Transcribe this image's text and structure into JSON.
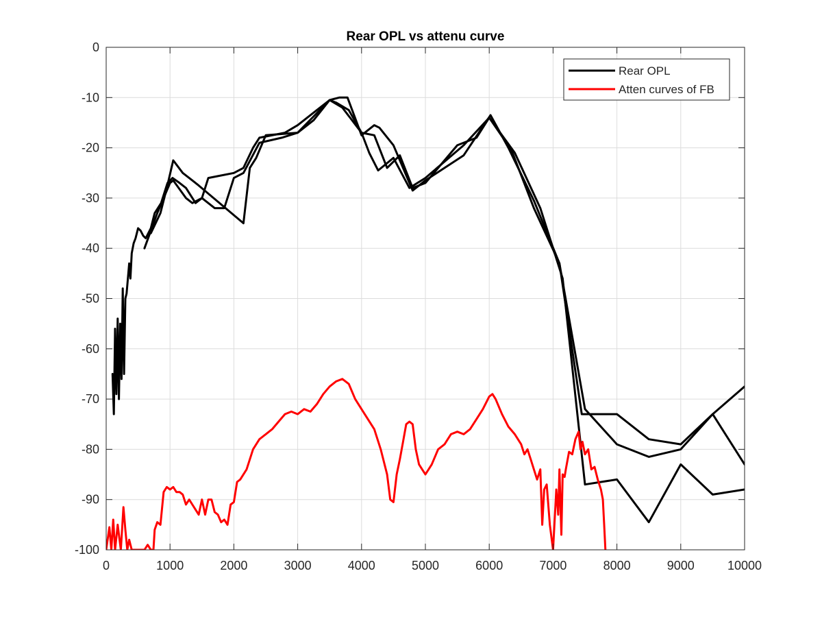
{
  "chart_data": {
    "type": "line",
    "title": "Rear OPL vs attenu curve",
    "xlabel": "",
    "ylabel": "",
    "xlim": [
      0,
      10000
    ],
    "ylim": [
      -100,
      0
    ],
    "x_ticks": [
      0,
      1000,
      2000,
      3000,
      4000,
      5000,
      6000,
      7000,
      8000,
      9000,
      10000
    ],
    "y_ticks": [
      0,
      -10,
      -20,
      -30,
      -40,
      -50,
      -60,
      -70,
      -80,
      -90,
      -100
    ],
    "grid": true,
    "legend_position": "top-right",
    "legend": [
      {
        "label": "Rear OPL",
        "color": "#000000"
      },
      {
        "label": "Atten curves of FB",
        "color": "#ff0000"
      }
    ],
    "series": [
      {
        "name": "Rear OPL",
        "color": "#000000",
        "x": [
          100,
          120,
          140,
          160,
          180,
          200,
          220,
          240,
          260,
          280,
          300,
          320,
          340,
          360,
          380,
          400,
          430,
          460,
          500,
          540,
          580,
          620,
          700,
          760,
          860,
          960,
          1040,
          1150,
          1250,
          1400,
          1500,
          1600,
          2000,
          2150,
          2300,
          2400,
          2800,
          3000,
          3150,
          3300,
          3500,
          3600,
          3800,
          4000,
          4120,
          4260,
          4500,
          4750,
          5000,
          5600,
          6000,
          6350,
          6700,
          7100,
          7450,
          8000,
          8500,
          9000,
          9500,
          10000
        ],
        "y": [
          -65,
          -73,
          -56,
          -69,
          -54,
          -70,
          -55,
          -66,
          -48,
          -65,
          -50,
          -49,
          -46,
          -43,
          -46,
          -41,
          -39,
          -38,
          -36,
          -36.5,
          -37.5,
          -38,
          -36,
          -33,
          -31,
          -27,
          -26,
          -27,
          -28,
          -31,
          -30,
          -26,
          -25,
          -24,
          -20,
          -18,
          -17,
          -15.5,
          -14,
          -12.5,
          -10.5,
          -11,
          -12.5,
          -17,
          -21,
          -24.5,
          -22,
          -28,
          -26,
          -19.5,
          -14,
          -20.5,
          -32,
          -43,
          -73,
          -73,
          -78,
          -79,
          -73,
          -67.5
        ]
      },
      {
        "name": "",
        "color": "#000000",
        "x": [
          600,
          800,
          900,
          1000,
          1050,
          1250,
          1350,
          1500,
          1700,
          1850,
          2000,
          2150,
          2400,
          2750,
          3000,
          3250,
          3500,
          3650,
          3780,
          4000,
          4200,
          4280,
          4500,
          4800,
          5000,
          5600,
          6020,
          6300,
          6700,
          7100,
          7500,
          8000,
          8500,
          9000,
          9500,
          10000
        ],
        "y": [
          -40,
          -33,
          -30,
          -27,
          -26.5,
          -30,
          -31,
          -30,
          -32,
          -32,
          -26,
          -25,
          -19,
          -18,
          -17,
          -14.5,
          -10.5,
          -10,
          -10,
          -17.5,
          -15.5,
          -16,
          -19.5,
          -28.5,
          -26.5,
          -21.5,
          -13.5,
          -20,
          -30.5,
          -43,
          -72,
          -79,
          -81.5,
          -80,
          -73,
          -83
        ]
      },
      {
        "name": "",
        "color": "#000000",
        "x": [
          700,
          850,
          950,
          1050,
          1200,
          1350,
          1450,
          2150,
          2250,
          2350,
          2500,
          3000,
          3500,
          3700,
          4000,
          4200,
          4400,
          4600,
          4800,
          5000,
          5500,
          5800,
          6000,
          6400,
          6800,
          7150,
          7500,
          8000,
          8500,
          9000,
          9500,
          10000
        ],
        "y": [
          -37,
          -33,
          -28,
          -22.5,
          -25,
          -26.5,
          -27.5,
          -35,
          -24,
          -22,
          -17.5,
          -17,
          -10.5,
          -12,
          -17,
          -17.5,
          -24,
          -21.5,
          -28,
          -27,
          -19.5,
          -18,
          -14,
          -21,
          -32,
          -46,
          -87,
          -86,
          -94.5,
          -83,
          -89,
          -88
        ]
      },
      {
        "name": "Atten curves of FB",
        "color": "#ff0000",
        "x": [
          0,
          50,
          80,
          110,
          140,
          180,
          230,
          270,
          300,
          330,
          360,
          400,
          600,
          650,
          700,
          740,
          760,
          800,
          850,
          900,
          950,
          1000,
          1050,
          1100,
          1150,
          1200,
          1250,
          1300,
          1350,
          1400,
          1450,
          1500,
          1550,
          1600,
          1650,
          1700,
          1750,
          1800,
          1850,
          1900,
          1950,
          2000,
          2050,
          2100,
          2200,
          2300,
          2400,
          2500,
          2600,
          2700,
          2800,
          2900,
          3000,
          3100,
          3200,
          3300,
          3400,
          3500,
          3600,
          3700,
          3800,
          3900,
          4000,
          4100,
          4200,
          4300,
          4400,
          4450,
          4500,
          4550,
          4600,
          4650,
          4700,
          4750,
          4800,
          4850,
          4900,
          4950,
          5000,
          5050,
          5100,
          5200,
          5300,
          5400,
          5500,
          5600,
          5700,
          5800,
          5900,
          6000,
          6050,
          6100,
          6200,
          6300,
          6400,
          6500,
          6550,
          6600,
          6650,
          6700,
          6750,
          6800,
          6830,
          6860,
          6900,
          6950,
          7000,
          7050,
          7080,
          7100,
          7130,
          7150,
          7180,
          7200,
          7250,
          7300,
          7350,
          7400,
          7430,
          7460,
          7500,
          7550,
          7600,
          7650,
          7700,
          7750,
          7780,
          7800,
          7820
        ],
        "y": [
          -100,
          -95.5,
          -100,
          -94,
          -100,
          -95,
          -100,
          -91.5,
          -96,
          -100,
          -98,
          -100,
          -100,
          -99,
          -100,
          -100,
          -96,
          -94.5,
          -95,
          -88.5,
          -87.5,
          -88,
          -87.5,
          -88.5,
          -88.5,
          -89,
          -91,
          -90,
          -91,
          -92,
          -93,
          -90,
          -93,
          -90,
          -90,
          -92.5,
          -93,
          -94.5,
          -94,
          -95,
          -91,
          -90.5,
          -86.5,
          -86,
          -84,
          -80,
          -78,
          -77,
          -76,
          -74.5,
          -73,
          -72.5,
          -73,
          -72,
          -72.5,
          -71,
          -69,
          -67.5,
          -66.5,
          -66,
          -67,
          -70,
          -72,
          -74,
          -76,
          -80,
          -85,
          -90,
          -90.5,
          -85,
          -82,
          -78.5,
          -75,
          -74.5,
          -75,
          -80,
          -83,
          -84,
          -85,
          -84,
          -83,
          -80,
          -79,
          -77,
          -76.5,
          -77,
          -76,
          -74,
          -72,
          -69.5,
          -69,
          -70,
          -73,
          -75.5,
          -77,
          -79,
          -81,
          -80,
          -82,
          -84,
          -86,
          -84,
          -95,
          -88,
          -87,
          -95,
          -100,
          -88,
          -93,
          -84,
          -97,
          -85,
          -85.5,
          -84,
          -80.5,
          -81,
          -78,
          -76.5,
          -80,
          -78.5,
          -81,
          -80,
          -84,
          -83.5,
          -86,
          -88,
          -90,
          -95,
          -100
        ]
      }
    ]
  }
}
